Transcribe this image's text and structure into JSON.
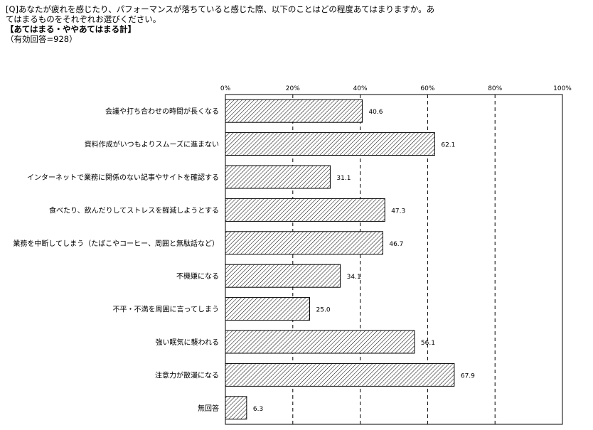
{
  "header": {
    "question_line1": "[Q]あなたが疲れを感じたり、パフォーマンスが落ちていると感じた際、以下のことはどの程度あてはまりますか。あ",
    "question_line2": "てはまるものをそれぞれお選びください。",
    "subtitle": "【あてはまる・ややあてはまる計】",
    "note": "（有効回答=928）"
  },
  "colors": {
    "bar_fill": "#ffffff",
    "bar_hatch": "#000000",
    "grid": "#000000"
  },
  "chart_data": {
    "type": "bar",
    "orientation": "horizontal",
    "title": "【あてはまる・ややあてはまる計】",
    "xlim": [
      0,
      100
    ],
    "xticks": [
      "0%",
      "20%",
      "40%",
      "60%",
      "80%",
      "100%"
    ],
    "grid": "dashed vertical",
    "categories": [
      "会議や打ち合わせの時間が長くなる",
      "資料作成がいつもよりスムーズに進まない",
      "インターネットで業務に関係のない記事やサイトを確認する",
      "食べたり、飲んだりしてストレスを軽減しようとする",
      "業務を中断してしまう（たばこやコーヒー、周囲と無駄話など）",
      "不機嫌になる",
      "不平・不満を周囲に言ってしまう",
      "強い眠気に襲われる",
      "注意力が散漫になる",
      "無回答"
    ],
    "values": [
      40.6,
      62.1,
      31.1,
      47.3,
      46.7,
      34.1,
      25.0,
      56.1,
      67.9,
      6.3
    ],
    "value_labels": [
      "40.6",
      "62.1",
      "31.1",
      "47.3",
      "46.7",
      "34.1",
      "25.0",
      "56.1",
      "67.9",
      "6.3"
    ]
  }
}
